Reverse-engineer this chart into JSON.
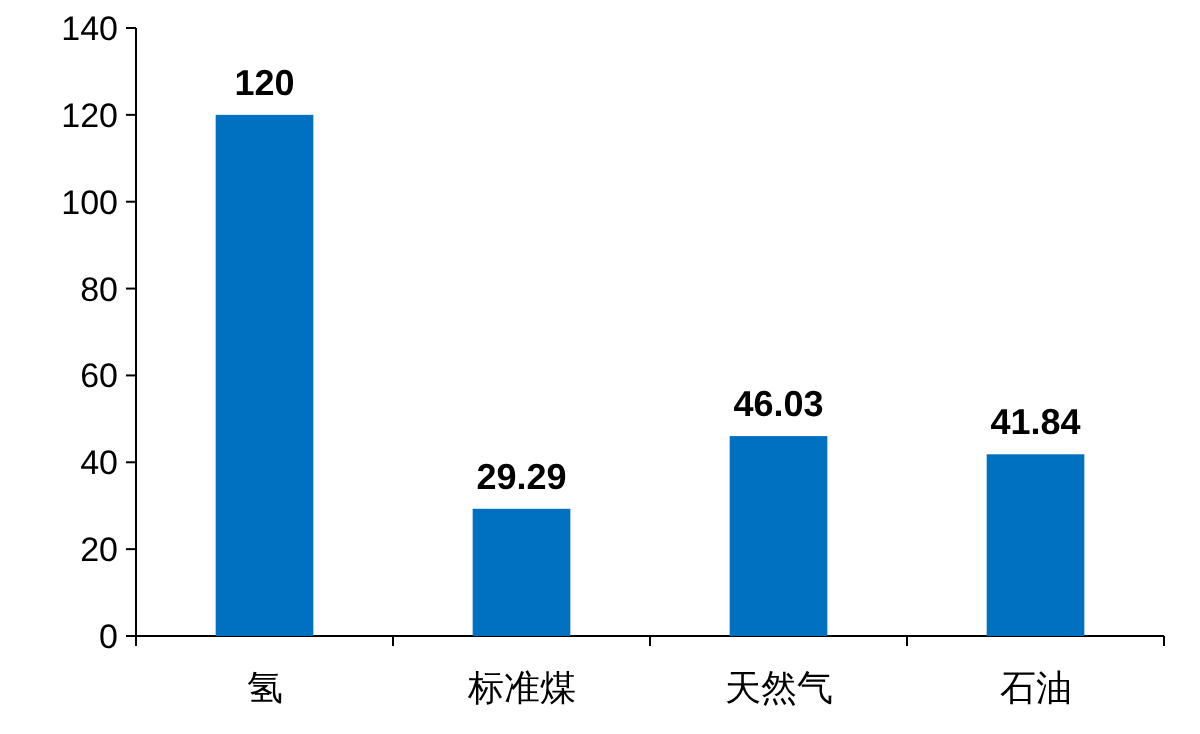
{
  "chart_data": {
    "type": "bar",
    "categories": [
      "氢",
      "标准煤",
      "天然气",
      "石油"
    ],
    "values": [
      120,
      29.29,
      46.03,
      41.84
    ],
    "color": "#0070c0",
    "ylim": [
      0,
      140
    ],
    "yticks": [
      0,
      20,
      40,
      60,
      80,
      100,
      120,
      140
    ],
    "data_labels": true
  }
}
